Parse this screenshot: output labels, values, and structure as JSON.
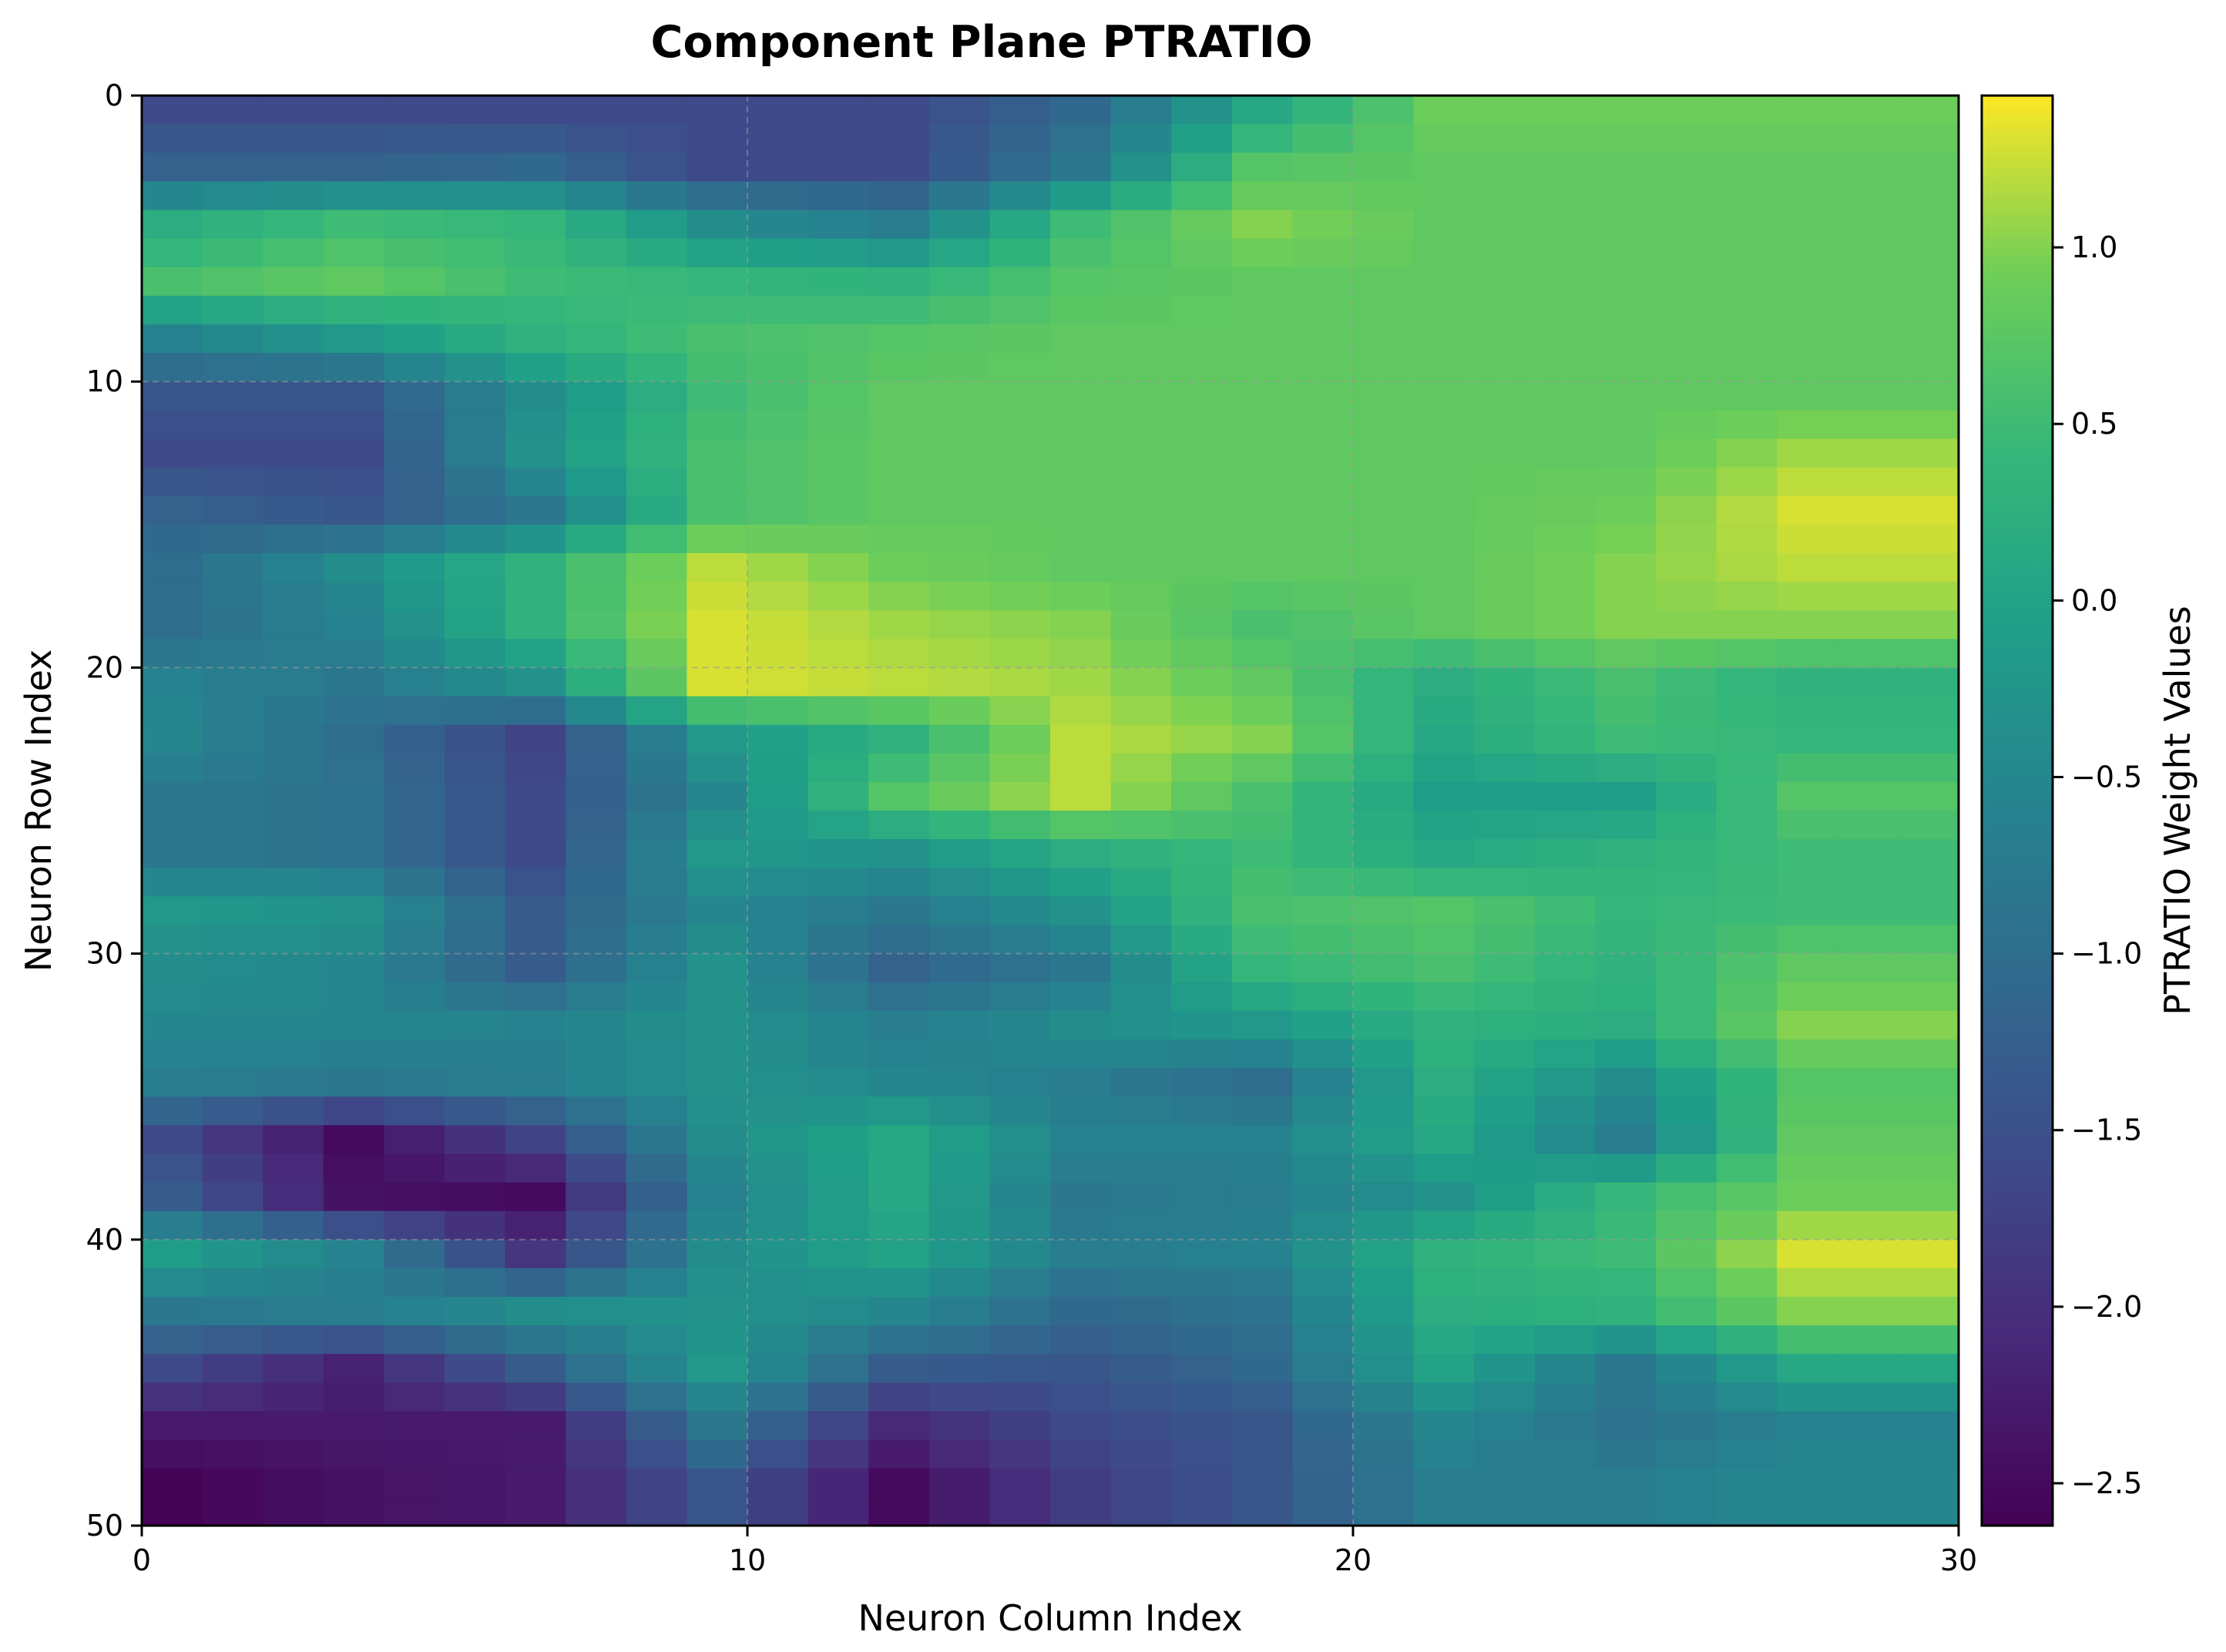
{
  "chart_data": {
    "type": "heatmap",
    "title": "Component Plane PTRATIO",
    "xlabel": "Neuron Column Index",
    "ylabel": "Neuron Row Index",
    "colorbar_label": "PTRATIO Weight Values",
    "colormap": "viridis",
    "xlim": [
      0,
      30
    ],
    "ylim": [
      50,
      0
    ],
    "xticks": [
      0,
      10,
      20,
      30
    ],
    "yticks": [
      0,
      10,
      20,
      30,
      40,
      50
    ],
    "colorbar_range": [
      -2.62,
      1.43
    ],
    "colorbar_ticks": [
      1.0,
      0.5,
      0.0,
      -0.5,
      -1.0,
      -1.5,
      -2.0,
      -2.5
    ],
    "colorbar_tick_labels": [
      "1.0",
      "0.5",
      "0.0",
      "−0.5",
      "−1.0",
      "−1.5",
      "−2.0",
      "−2.5"
    ],
    "grid": true,
    "grid_style": "dashed gray",
    "rows": 50,
    "cols": 30,
    "anchor_grid_note": "values sampled every 2 rows (0,2,...,48) and 3 columns (0,3,...,27); rendered via interpolation",
    "anchor_values": [
      [
        -1.6,
        -1.6,
        -1.6,
        -1.6,
        -1.6,
        -1.1,
        0.1,
        0.9,
        0.9,
        0.9
      ],
      [
        -1.2,
        -1.2,
        -1.1,
        -1.6,
        -1.6,
        -0.8,
        0.7,
        0.8,
        0.8,
        0.8
      ],
      [
        0.2,
        0.5,
        0.4,
        -0.4,
        -0.7,
        0.5,
        1.0,
        0.8,
        0.8,
        0.8
      ],
      [
        0.6,
        0.8,
        0.5,
        0.4,
        0.3,
        0.7,
        0.8,
        0.8,
        0.8,
        0.8
      ],
      [
        -0.6,
        -0.2,
        0.3,
        0.6,
        0.7,
        0.8,
        0.8,
        0.8,
        0.8,
        0.8
      ],
      [
        -1.4,
        -1.4,
        -0.4,
        0.5,
        0.8,
        0.8,
        0.8,
        0.8,
        0.8,
        0.8
      ],
      [
        -1.6,
        -1.6,
        -0.3,
        0.6,
        0.8,
        0.8,
        0.8,
        0.8,
        0.8,
        1.1
      ],
      [
        -1.2,
        -1.4,
        -0.8,
        0.6,
        0.8,
        0.8,
        0.8,
        0.8,
        0.9,
        1.3
      ],
      [
        -1.0,
        -0.4,
        0.3,
        1.2,
        0.9,
        0.8,
        0.8,
        0.8,
        1.0,
        1.2
      ],
      [
        -1.0,
        -0.6,
        0.3,
        1.3,
        1.1,
        1.0,
        0.6,
        0.8,
        1.0,
        1.0
      ],
      [
        -0.6,
        -0.8,
        -0.3,
        1.3,
        1.2,
        1.1,
        0.8,
        0.2,
        0.6,
        0.3
      ],
      [
        -0.5,
        -1.0,
        -1.7,
        -0.2,
        0.3,
        1.2,
        1.0,
        0.1,
        0.5,
        0.4
      ],
      [
        -0.8,
        -0.9,
        -1.6,
        -0.5,
        0.7,
        1.2,
        0.6,
        -0.1,
        -0.1,
        0.7
      ],
      [
        -0.8,
        -0.9,
        -1.6,
        -0.2,
        -0.3,
        0.2,
        0.5,
        0.1,
        0.3,
        0.5
      ],
      [
        -0.2,
        -0.3,
        -1.3,
        -0.5,
        -0.8,
        -0.3,
        0.6,
        0.7,
        0.4,
        0.5
      ],
      [
        -0.4,
        -0.5,
        -1.3,
        -0.3,
        -1.2,
        -0.8,
        0.4,
        0.6,
        0.3,
        0.8
      ],
      [
        -0.5,
        -0.5,
        -0.6,
        -0.3,
        -0.7,
        -0.4,
        -0.2,
        0.3,
        0.2,
        1.0
      ],
      [
        -0.7,
        -0.8,
        -0.7,
        -0.3,
        -0.5,
        -0.7,
        -1.0,
        0.2,
        -0.4,
        0.7
      ],
      [
        -1.6,
        -2.5,
        -1.7,
        -0.4,
        0.1,
        -0.6,
        -0.6,
        0.1,
        -0.7,
        0.8
      ],
      [
        -1.3,
        -2.4,
        -2.5,
        -0.6,
        0.1,
        -0.8,
        -0.7,
        -0.3,
        0.4,
        0.9
      ],
      [
        -0.1,
        -0.6,
        -1.9,
        -0.4,
        0.0,
        -0.7,
        -0.6,
        0.3,
        0.5,
        1.3
      ],
      [
        -0.8,
        -0.7,
        -0.4,
        -0.3,
        -0.5,
        -1.1,
        -0.9,
        0.2,
        0.3,
        1.0
      ],
      [
        -1.6,
        -2.2,
        -1.3,
        -0.2,
        -1.3,
        -1.4,
        -1.1,
        0.0,
        -0.8,
        0.1
      ],
      [
        -2.3,
        -2.3,
        -2.3,
        -0.8,
        -2.1,
        -1.6,
        -1.4,
        -0.5,
        -0.9,
        -0.6
      ],
      [
        -2.6,
        -2.4,
        -2.3,
        -1.4,
        -2.5,
        -1.8,
        -1.4,
        -0.7,
        -0.7,
        -0.5
      ]
    ]
  }
}
